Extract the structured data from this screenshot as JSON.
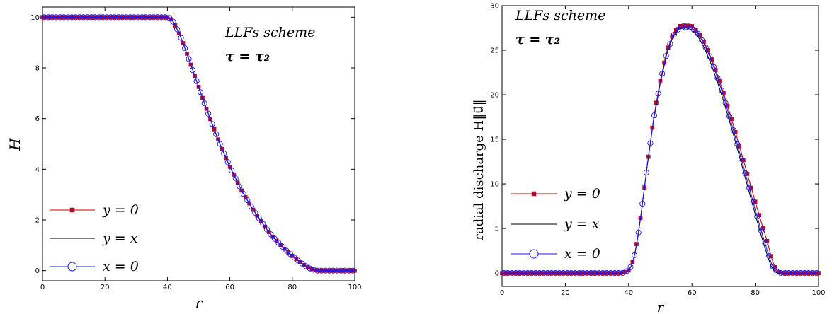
{
  "colors": {
    "y0": "#cc0000",
    "y0_marker": "#b0103a",
    "yx": "#000000",
    "x0": "#1a1aff"
  },
  "chart_data": [
    {
      "type": "line",
      "title": "",
      "xlabel": "r",
      "ylabel": "H",
      "xlim": [
        0,
        100
      ],
      "ylim": [
        -0.4,
        10.4
      ],
      "xticks": [
        "0",
        "20",
        "40",
        "60",
        "80",
        "100"
      ],
      "yticks": [
        "0",
        "2",
        "4",
        "6",
        "8",
        "10"
      ],
      "grid": false,
      "legend": "bottom-left",
      "annotations": [
        "LLFs scheme",
        "τ = τ₂"
      ],
      "series": [
        {
          "name": "y = 0",
          "x": [
            0,
            10,
            20,
            30,
            38,
            40,
            41,
            42,
            44,
            46,
            48,
            50,
            52,
            54,
            56,
            58,
            60,
            62,
            64,
            66,
            68,
            70,
            72,
            74,
            76,
            78,
            80,
            82,
            84,
            86,
            88,
            90,
            100
          ],
          "y": [
            10,
            10,
            10,
            10,
            10,
            10,
            9.95,
            9.8,
            9.3,
            8.65,
            7.95,
            7.25,
            6.55,
            5.9,
            5.25,
            4.65,
            4.1,
            3.6,
            3.1,
            2.7,
            2.3,
            1.95,
            1.6,
            1.3,
            1.05,
            0.8,
            0.58,
            0.38,
            0.2,
            0.06,
            0,
            0,
            0
          ]
        },
        {
          "name": "y = x",
          "x": [
            0,
            10,
            20,
            30,
            38,
            40,
            41,
            42,
            44,
            46,
            48,
            50,
            52,
            54,
            56,
            58,
            60,
            62,
            64,
            66,
            68,
            70,
            72,
            74,
            76,
            78,
            80,
            82,
            84,
            86,
            88,
            90,
            100
          ],
          "y": [
            10,
            10,
            10,
            10,
            10,
            10,
            9.95,
            9.8,
            9.3,
            8.65,
            7.95,
            7.25,
            6.55,
            5.9,
            5.25,
            4.65,
            4.1,
            3.6,
            3.1,
            2.7,
            2.3,
            1.95,
            1.6,
            1.3,
            1.05,
            0.8,
            0.58,
            0.38,
            0.2,
            0.06,
            0,
            0,
            0
          ]
        },
        {
          "name": "x = 0",
          "x": [
            0,
            10,
            20,
            30,
            38,
            40,
            41,
            42,
            44,
            46,
            48,
            50,
            52,
            54,
            56,
            58,
            60,
            62,
            64,
            66,
            68,
            70,
            72,
            74,
            76,
            78,
            80,
            82,
            84,
            86,
            88,
            90,
            100
          ],
          "y": [
            10,
            10,
            10,
            10,
            10,
            10,
            9.95,
            9.8,
            9.3,
            8.65,
            7.95,
            7.25,
            6.55,
            5.9,
            5.25,
            4.65,
            4.1,
            3.6,
            3.1,
            2.7,
            2.3,
            1.95,
            1.6,
            1.3,
            1.05,
            0.8,
            0.58,
            0.38,
            0.2,
            0.06,
            0,
            0,
            0
          ]
        }
      ]
    },
    {
      "type": "line",
      "title": "",
      "xlabel": "r",
      "ylabel": "radial discharge H‖u⃗‖",
      "xlim": [
        0,
        100
      ],
      "ylim": [
        -1.5,
        30
      ],
      "xticks": [
        "0",
        "20",
        "40",
        "60",
        "80",
        "100"
      ],
      "yticks": [
        "0",
        "5",
        "10",
        "15",
        "20",
        "25",
        "30"
      ],
      "grid": false,
      "legend": "bottom-left",
      "annotations": [
        "LLFs scheme",
        "τ = τ₂"
      ],
      "series": [
        {
          "name": "y = 0",
          "x": [
            0,
            10,
            20,
            30,
            38,
            40,
            41,
            42,
            43,
            44,
            45,
            46,
            48,
            50,
            52,
            54,
            56,
            58,
            60,
            62,
            64,
            66,
            68,
            70,
            72,
            74,
            76,
            78,
            80,
            82,
            84,
            85,
            86,
            87,
            88,
            90,
            100
          ],
          "y": [
            0,
            0,
            0,
            0,
            0,
            0.3,
            0.9,
            2.2,
            4.3,
            6.8,
            9.6,
            12.4,
            17.6,
            21.6,
            24.8,
            26.8,
            27.7,
            27.8,
            27.7,
            27.0,
            25.8,
            24.2,
            22.3,
            20.2,
            17.9,
            15.5,
            13.0,
            10.5,
            8.0,
            5.6,
            3.3,
            1.9,
            0.8,
            0.2,
            0,
            0,
            0
          ]
        },
        {
          "name": "y = x",
          "x": [
            0,
            10,
            20,
            30,
            38,
            40,
            41,
            42,
            43,
            44,
            45,
            46,
            48,
            50,
            52,
            54,
            56,
            58,
            60,
            62,
            64,
            66,
            68,
            70,
            72,
            74,
            76,
            78,
            80,
            82,
            84,
            85,
            86,
            87,
            88,
            90,
            100
          ],
          "y": [
            0,
            0,
            0,
            0,
            0,
            0.3,
            0.9,
            2.2,
            4.3,
            6.8,
            9.6,
            12.4,
            17.4,
            21.3,
            24.5,
            26.5,
            27.4,
            27.5,
            27.3,
            26.5,
            25.2,
            23.5,
            21.5,
            19.3,
            16.9,
            14.4,
            11.8,
            9.2,
            6.6,
            4.1,
            1.8,
            0.8,
            0.2,
            0,
            0,
            0,
            0
          ]
        },
        {
          "name": "x = 0",
          "x": [
            0,
            10,
            20,
            30,
            38,
            40,
            41,
            42,
            43,
            44,
            45,
            46,
            48,
            50,
            52,
            54,
            56,
            58,
            60,
            62,
            64,
            66,
            68,
            70,
            72,
            74,
            76,
            78,
            80,
            82,
            84,
            85,
            86,
            87,
            88,
            90,
            100
          ],
          "y": [
            0,
            0,
            0,
            0,
            0,
            0.3,
            0.9,
            2.2,
            4.3,
            6.8,
            9.6,
            12.4,
            17.5,
            21.4,
            24.6,
            26.6,
            27.5,
            27.6,
            27.5,
            26.8,
            25.6,
            24.0,
            22.0,
            19.8,
            17.4,
            14.9,
            12.3,
            9.7,
            7.1,
            4.6,
            2.3,
            1.2,
            0.4,
            0.1,
            0,
            0,
            0
          ]
        }
      ]
    }
  ]
}
